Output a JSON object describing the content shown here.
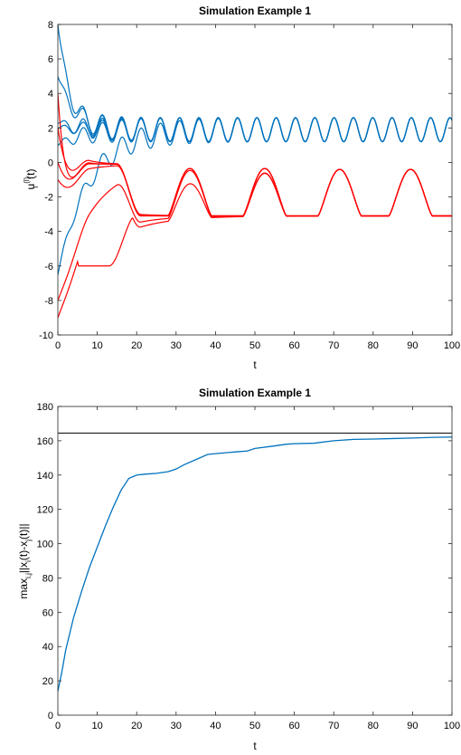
{
  "chart_data": [
    {
      "type": "line",
      "title": "Simulation Example 1",
      "xlabel": "t",
      "ylabel_main": "u",
      "ylabel_sub": "i",
      "ylabel_sup": "(l)",
      "ylabel_tail": "(t)",
      "xlim": [
        0,
        100
      ],
      "ylim": [
        -10,
        8
      ],
      "xticks": [
        "0",
        "10",
        "20",
        "30",
        "40",
        "50",
        "60",
        "70",
        "80",
        "90",
        "100"
      ],
      "yticks": [
        "-10",
        "-8",
        "-6",
        "-4",
        "-2",
        "0",
        "2",
        "4",
        "6",
        "8"
      ],
      "grid": false,
      "colors": {
        "blue": "#0072BD",
        "red": "#FF0000"
      },
      "groups": [
        {
          "color": "blue",
          "base": 1.9,
          "amp": 0.7,
          "period": 4.9,
          "count": 6,
          "initial": [
            8.0,
            5.0,
            2.3,
            1.0,
            -6.5,
            2.0
          ]
        },
        {
          "color": "red",
          "low": -3.1,
          "count": 6,
          "pulses": [
            {
              "start": 0,
              "end": 20,
              "peak": -0.1
            },
            {
              "start": 30,
              "end": 37,
              "peak": -0.35
            },
            {
              "start": 49,
              "end": 56,
              "peak": -0.35
            },
            {
              "start": 68,
              "end": 75,
              "peak": -0.4
            },
            {
              "start": 86,
              "end": 93,
              "peak": -0.4
            }
          ],
          "initial": [
            4.0,
            2.0,
            0.0,
            -1.0,
            -8.0,
            -9.0
          ]
        }
      ]
    },
    {
      "type": "line",
      "title": "Simulation Example 1",
      "xlabel": "t",
      "ylabel_text": "max",
      "ylabel_sub": "i,j",
      "ylabel_tail": "||x",
      "ylabel_sub2": "i",
      "ylabel_mid": "(t)-x",
      "ylabel_sub3": "j",
      "ylabel_end": "(t)||",
      "xlim": [
        0,
        100
      ],
      "ylim": [
        0,
        180
      ],
      "xticks": [
        "0",
        "10",
        "20",
        "30",
        "40",
        "50",
        "60",
        "70",
        "80",
        "90",
        "100"
      ],
      "yticks": [
        "0",
        "20",
        "40",
        "60",
        "80",
        "100",
        "120",
        "140",
        "160",
        "180"
      ],
      "grid": false,
      "colors": {
        "series": "#0072BD",
        "bound": "#000000"
      },
      "bound": 164.5,
      "series": {
        "x": [
          0,
          1,
          2,
          4,
          6,
          8,
          10,
          12,
          14,
          16,
          18,
          20,
          22,
          25,
          28,
          30,
          32,
          35,
          38,
          40,
          45,
          48,
          50,
          55,
          58,
          60,
          65,
          70,
          75,
          80,
          85,
          90,
          95,
          100
        ],
        "y": [
          14,
          25,
          38,
          57,
          72,
          86,
          98,
          110,
          121,
          131,
          138,
          140,
          140.5,
          141,
          142,
          143.5,
          146,
          149,
          152,
          152.5,
          153.5,
          154,
          155.5,
          157,
          158,
          158.3,
          158.6,
          160,
          160.8,
          161,
          161.3,
          161.6,
          162,
          162.2
        ]
      }
    }
  ]
}
